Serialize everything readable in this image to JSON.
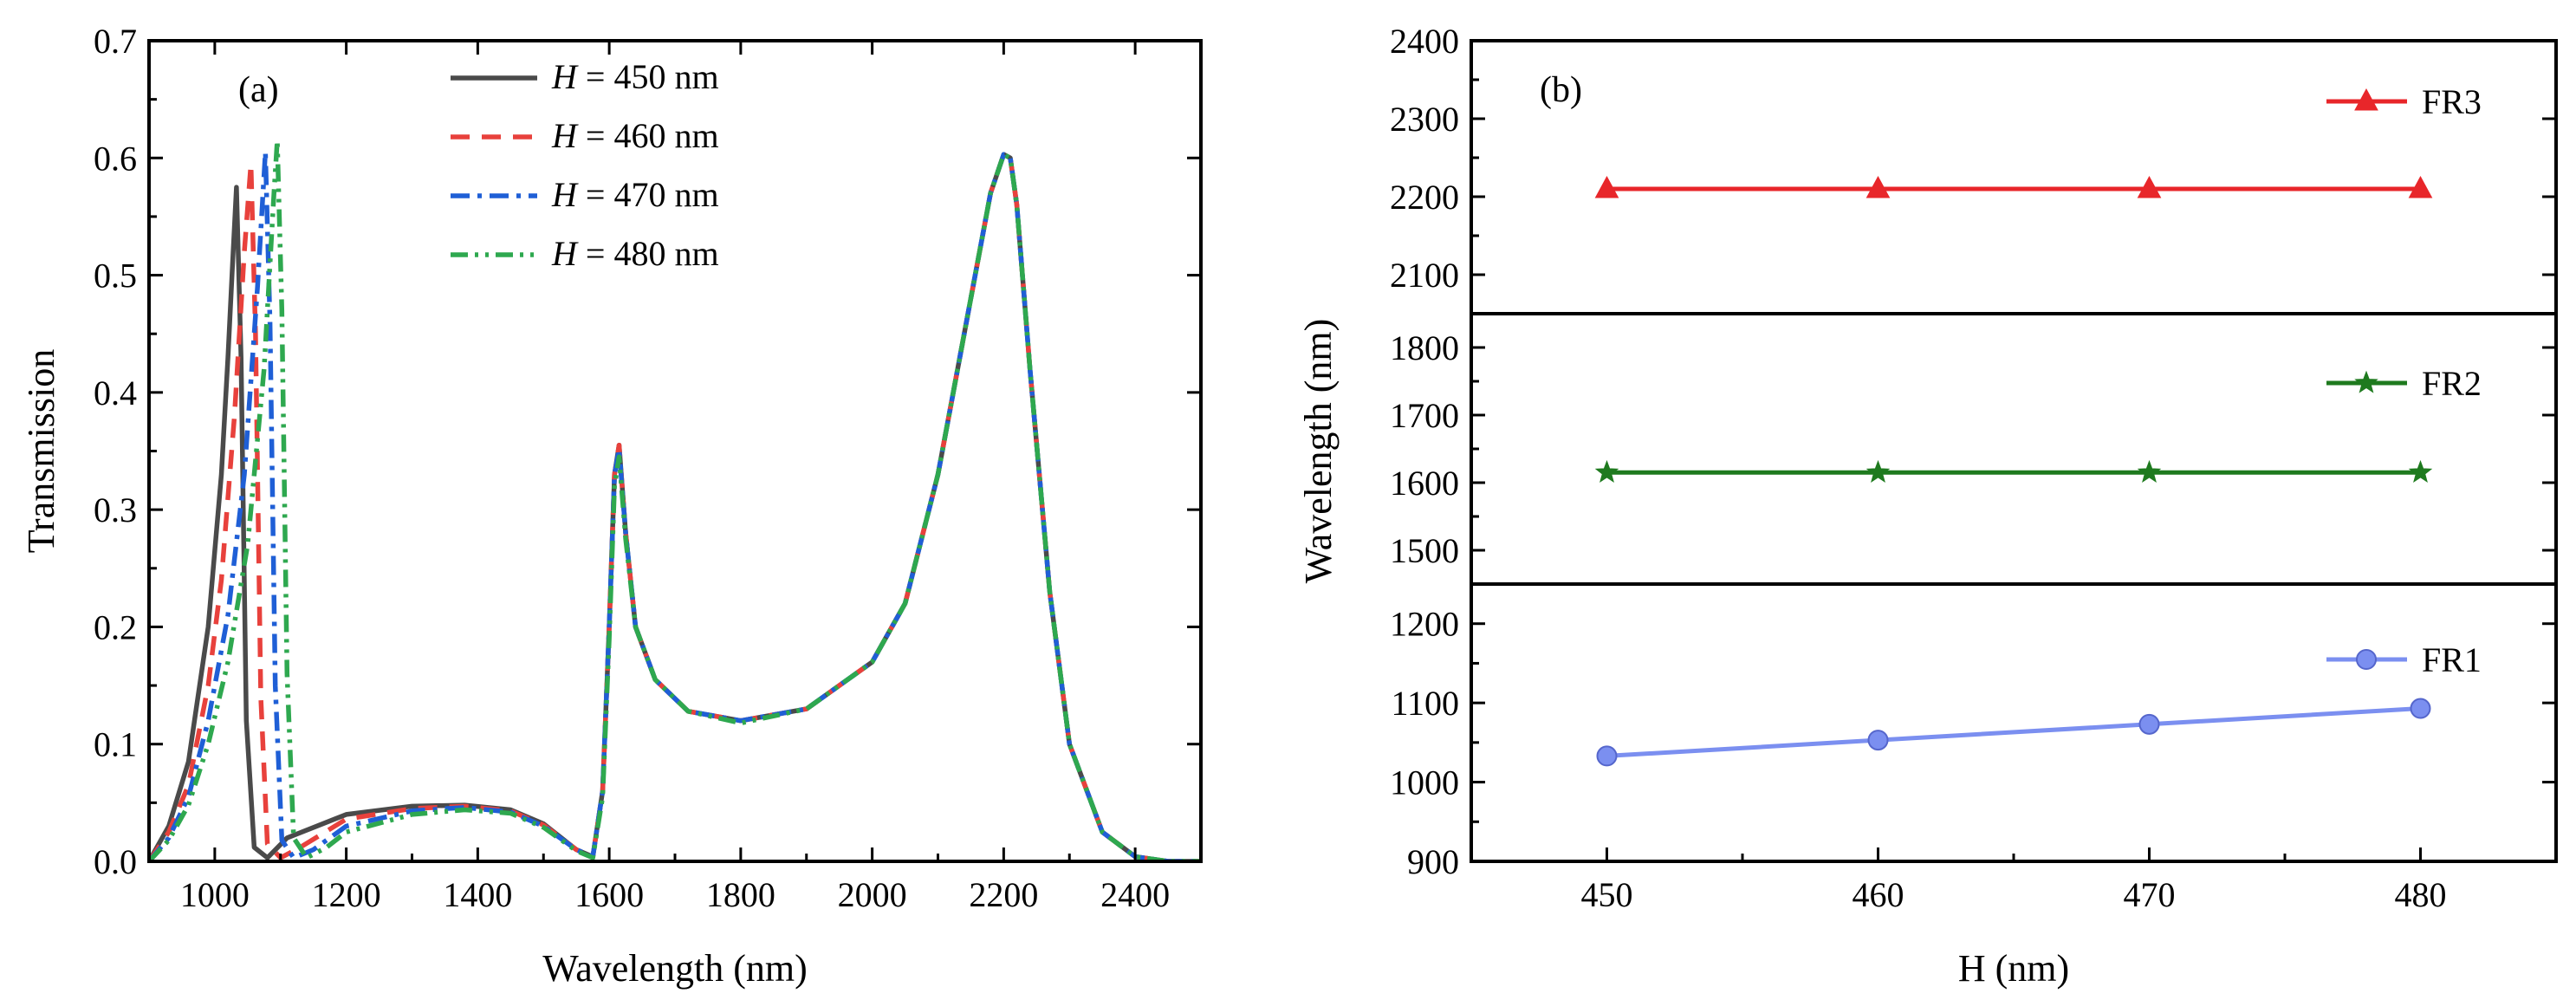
{
  "chart_data": [
    {
      "type": "line",
      "panel_label": "(a)",
      "xlabel": "Wavelength (nm)",
      "ylabel": "Transmission",
      "xlim": [
        900,
        2500
      ],
      "ylim": [
        0,
        0.7
      ],
      "xticks": [
        1000,
        1200,
        1400,
        1600,
        1800,
        2000,
        2200,
        2400
      ],
      "yticks": [
        0.0,
        0.1,
        0.2,
        0.3,
        0.4,
        0.5,
        0.6,
        0.7
      ],
      "xtick_labels": [
        "1000",
        "1200",
        "1400",
        "1600",
        "1800",
        "2000",
        "2200",
        "2400"
      ],
      "ytick_labels": [
        "0.0",
        "0.1",
        "0.2",
        "0.3",
        "0.4",
        "0.5",
        "0.6",
        "0.7"
      ],
      "legend_position": "top",
      "legend_var": "H",
      "series": [
        {
          "name": "H = 450 nm",
          "legend_rest": " = 450 nm",
          "color": "#4a4a4a",
          "dash": "solid",
          "peak1_x": 1033,
          "peak1_y": 0.575,
          "x": [
            900,
            930,
            960,
            990,
            1010,
            1020,
            1028,
            1033,
            1040,
            1048,
            1060,
            1080,
            1110,
            1200,
            1300,
            1380,
            1450,
            1500,
            1550,
            1575,
            1590,
            1600,
            1608,
            1615,
            1625,
            1640,
            1670,
            1720,
            1800,
            1900,
            2000,
            2050,
            2100,
            2150,
            2180,
            2200,
            2210,
            2220,
            2240,
            2270,
            2300,
            2350,
            2400,
            2450,
            2500
          ],
          "y": [
            0.0,
            0.03,
            0.085,
            0.2,
            0.33,
            0.43,
            0.52,
            0.575,
            0.43,
            0.12,
            0.012,
            0.003,
            0.02,
            0.04,
            0.047,
            0.048,
            0.044,
            0.032,
            0.01,
            0.004,
            0.06,
            0.2,
            0.33,
            0.355,
            0.28,
            0.2,
            0.155,
            0.128,
            0.12,
            0.13,
            0.17,
            0.22,
            0.33,
            0.48,
            0.57,
            0.603,
            0.6,
            0.56,
            0.42,
            0.23,
            0.1,
            0.025,
            0.004,
            0.0,
            0.0
          ]
        },
        {
          "name": "H = 460 nm",
          "legend_rest": " = 460 nm",
          "color": "#e8413c",
          "dash": "22,14",
          "peak1_x": 1055,
          "peak1_y": 0.595,
          "x": [
            900,
            930,
            960,
            990,
            1010,
            1030,
            1045,
            1055,
            1062,
            1070,
            1080,
            1100,
            1130,
            1200,
            1300,
            1380,
            1450,
            1500,
            1550,
            1575,
            1590,
            1600,
            1608,
            1615,
            1625,
            1640,
            1670,
            1720,
            1800,
            1900,
            2000,
            2050,
            2100,
            2150,
            2180,
            2200,
            2210,
            2220,
            2240,
            2270,
            2300,
            2350,
            2400,
            2450,
            2500
          ],
          "y": [
            0.0,
            0.025,
            0.065,
            0.15,
            0.24,
            0.38,
            0.52,
            0.595,
            0.45,
            0.14,
            0.015,
            0.003,
            0.012,
            0.036,
            0.045,
            0.047,
            0.043,
            0.031,
            0.01,
            0.004,
            0.06,
            0.2,
            0.33,
            0.355,
            0.28,
            0.2,
            0.155,
            0.128,
            0.12,
            0.13,
            0.17,
            0.22,
            0.33,
            0.48,
            0.57,
            0.603,
            0.6,
            0.56,
            0.42,
            0.23,
            0.1,
            0.025,
            0.004,
            0.0,
            0.0
          ]
        },
        {
          "name": "H = 470 nm",
          "legend_rest": " = 470 nm",
          "color": "#1f5fd6",
          "dash": "22,9,5,9",
          "peak1_x": 1077,
          "peak1_y": 0.605,
          "x": [
            900,
            930,
            960,
            990,
            1020,
            1045,
            1065,
            1077,
            1084,
            1092,
            1102,
            1120,
            1150,
            1200,
            1300,
            1380,
            1450,
            1500,
            1550,
            1575,
            1590,
            1600,
            1608,
            1615,
            1625,
            1640,
            1670,
            1720,
            1800,
            1900,
            2000,
            2050,
            2100,
            2150,
            2180,
            2200,
            2210,
            2220,
            2240,
            2270,
            2300,
            2350,
            2400,
            2450,
            2500
          ],
          "y": [
            0.0,
            0.02,
            0.055,
            0.12,
            0.21,
            0.33,
            0.49,
            0.605,
            0.46,
            0.15,
            0.018,
            0.003,
            0.01,
            0.03,
            0.043,
            0.046,
            0.042,
            0.03,
            0.01,
            0.004,
            0.06,
            0.2,
            0.33,
            0.352,
            0.28,
            0.2,
            0.155,
            0.128,
            0.12,
            0.13,
            0.17,
            0.22,
            0.33,
            0.48,
            0.57,
            0.603,
            0.6,
            0.56,
            0.42,
            0.23,
            0.1,
            0.025,
            0.004,
            0.0,
            0.0
          ]
        },
        {
          "name": "H = 480 nm",
          "legend_rest": " = 480 nm",
          "color": "#2ea84f",
          "dash": "20,8,4,8,4,8",
          "peak1_x": 1095,
          "peak1_y": 0.615,
          "x": [
            900,
            930,
            960,
            990,
            1020,
            1050,
            1075,
            1090,
            1095,
            1102,
            1110,
            1120,
            1140,
            1170,
            1200,
            1300,
            1380,
            1450,
            1500,
            1550,
            1575,
            1590,
            1600,
            1608,
            1615,
            1625,
            1640,
            1670,
            1720,
            1800,
            1900,
            2000,
            2050,
            2100,
            2150,
            2180,
            2200,
            2210,
            2220,
            2240,
            2270,
            2300,
            2350,
            2400,
            2450,
            2500
          ],
          "y": [
            0.0,
            0.018,
            0.048,
            0.1,
            0.17,
            0.27,
            0.42,
            0.57,
            0.615,
            0.47,
            0.16,
            0.02,
            0.003,
            0.012,
            0.025,
            0.04,
            0.044,
            0.041,
            0.029,
            0.009,
            0.003,
            0.055,
            0.19,
            0.32,
            0.345,
            0.275,
            0.2,
            0.155,
            0.128,
            0.118,
            0.13,
            0.17,
            0.22,
            0.33,
            0.48,
            0.57,
            0.603,
            0.6,
            0.56,
            0.42,
            0.23,
            0.1,
            0.025,
            0.004,
            0.0,
            0.0
          ]
        }
      ]
    },
    {
      "type": "line",
      "panel_label": "(b)",
      "xlabel": "H (nm)",
      "ylabel": "Wavelength (nm)",
      "x": [
        450,
        460,
        470,
        480
      ],
      "xlim": [
        445,
        485
      ],
      "xticks": [
        450,
        460,
        470,
        480
      ],
      "xtick_labels": [
        "450",
        "460",
        "470",
        "480"
      ],
      "subplots": [
        {
          "name": "FR3",
          "color": "#e8262a",
          "marker": "triangle",
          "values": [
            2210,
            2210,
            2210,
            2210
          ],
          "ylim": [
            2050,
            2400
          ],
          "yticks": [
            2100,
            2200,
            2300,
            2400
          ],
          "ytick_labels": [
            "2100",
            "2200",
            "2300",
            "2400"
          ]
        },
        {
          "name": "FR2",
          "color": "#1e7a1e",
          "marker": "star",
          "values": [
            1615,
            1615,
            1615,
            1615
          ],
          "ylim": [
            1450,
            1850
          ],
          "yticks": [
            1500,
            1600,
            1700,
            1800
          ],
          "ytick_labels": [
            "1500",
            "1600",
            "1700",
            "1800"
          ]
        },
        {
          "name": "FR1",
          "color": "#7b8ff0",
          "marker": "circle",
          "values": [
            1033,
            1053,
            1073,
            1093
          ],
          "ylim": [
            900,
            1250
          ],
          "yticks": [
            900,
            1000,
            1100,
            1200
          ],
          "ytick_labels": [
            "900",
            "1000",
            "1100",
            "1200"
          ]
        }
      ]
    }
  ]
}
